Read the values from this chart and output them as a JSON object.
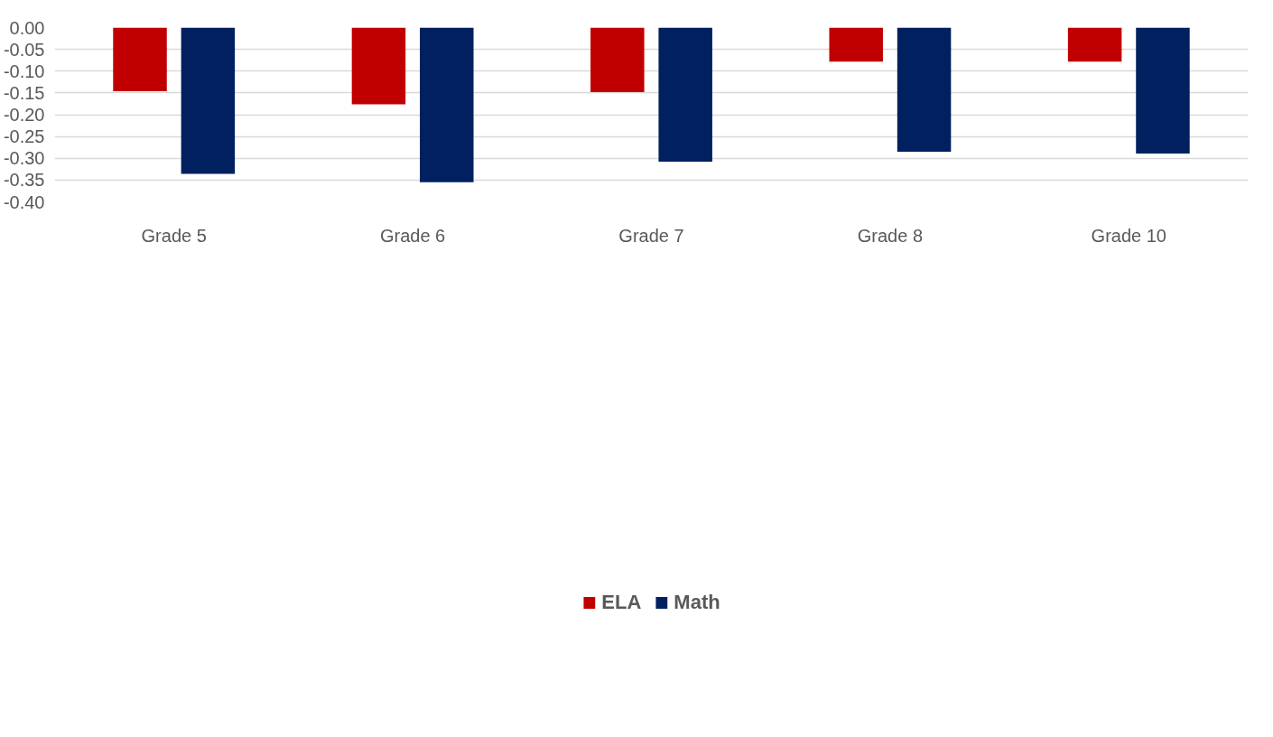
{
  "chart_data": {
    "type": "bar",
    "categories": [
      "Grade 5",
      "Grade 6",
      "Grade 7",
      "Grade 8",
      "Grade 10"
    ],
    "series": [
      {
        "name": "ELA",
        "color": "#c00000",
        "values": [
          -0.146,
          -0.176,
          -0.148,
          -0.078,
          -0.078
        ]
      },
      {
        "name": "Math",
        "color": "#002060",
        "values": [
          -0.336,
          -0.355,
          -0.308,
          -0.285,
          -0.289
        ]
      }
    ],
    "ylim": [
      -0.4,
      0
    ],
    "yticks": [
      {
        "value": 0,
        "label": "0.00"
      },
      {
        "value": -0.05,
        "label": "-0.05"
      },
      {
        "value": -0.1,
        "label": "-0.10"
      },
      {
        "value": -0.15,
        "label": "-0.15"
      },
      {
        "value": -0.2,
        "label": "-0.20"
      },
      {
        "value": -0.25,
        "label": "-0.25"
      },
      {
        "value": -0.3,
        "label": "-0.30"
      },
      {
        "value": -0.35,
        "label": "-0.35"
      },
      {
        "value": -0.4,
        "label": "-0.40"
      }
    ],
    "grid": "y",
    "legend": "bottom"
  }
}
